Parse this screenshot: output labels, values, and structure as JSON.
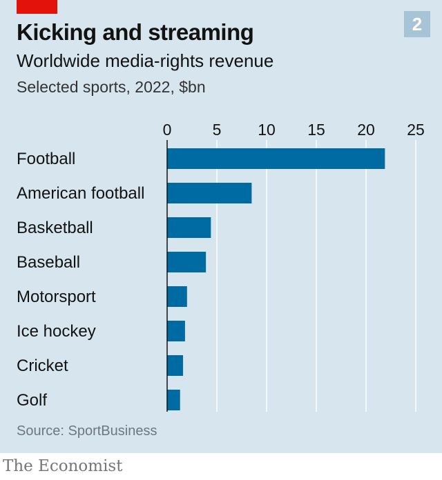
{
  "header": {
    "chart_number": "2",
    "title": "Kicking and streaming",
    "subtitle": "Worldwide media-rights revenue",
    "units": "Selected sports, 2022, $bn"
  },
  "footer": {
    "source": "Source: SportBusiness",
    "brand": "The Economist"
  },
  "colors": {
    "background": "#d7e5ee",
    "bar": "#006ba2",
    "accent": "#e3120b",
    "badge": "#a7c3d6"
  },
  "chart_data": {
    "type": "bar",
    "orientation": "horizontal",
    "categories": [
      "Football",
      "American football",
      "Basketball",
      "Baseball",
      "Motorsport",
      "Ice hockey",
      "Cricket",
      "Golf"
    ],
    "values": [
      21.9,
      8.5,
      4.4,
      3.9,
      2.0,
      1.8,
      1.6,
      1.3
    ],
    "xlim": [
      0,
      25
    ],
    "xticks": [
      0,
      5,
      10,
      15,
      20,
      25
    ],
    "axis_position": "top",
    "grid": true,
    "title": "Kicking and streaming",
    "subtitle": "Worldwide media-rights revenue",
    "unit_label": "Selected sports, 2022, $bn"
  }
}
